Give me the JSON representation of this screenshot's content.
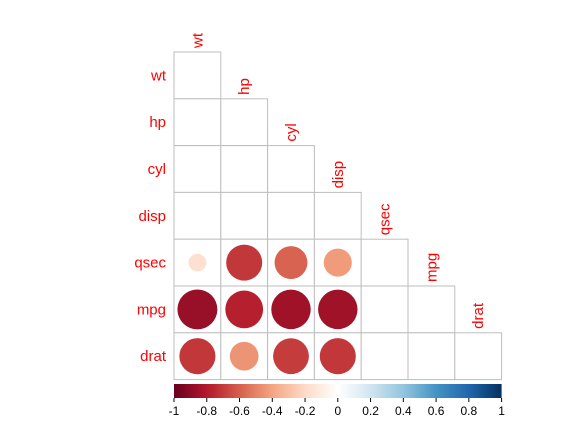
{
  "chart_data": {
    "type": "heatmap",
    "subtype": "correlation-circle-lower",
    "variables": [
      "wt",
      "hp",
      "cyl",
      "disp",
      "qsec",
      "mpg",
      "drat"
    ],
    "cells": [
      {
        "row": "qsec",
        "col": "wt",
        "value": -0.17
      },
      {
        "row": "qsec",
        "col": "hp",
        "value": -0.71
      },
      {
        "row": "qsec",
        "col": "cyl",
        "value": -0.59
      },
      {
        "row": "qsec",
        "col": "disp",
        "value": -0.43
      },
      {
        "row": "mpg",
        "col": "wt",
        "value": -0.87
      },
      {
        "row": "mpg",
        "col": "hp",
        "value": -0.78
      },
      {
        "row": "mpg",
        "col": "cyl",
        "value": -0.85
      },
      {
        "row": "mpg",
        "col": "disp",
        "value": -0.85
      },
      {
        "row": "drat",
        "col": "wt",
        "value": -0.71
      },
      {
        "row": "drat",
        "col": "hp",
        "value": -0.45
      },
      {
        "row": "drat",
        "col": "cyl",
        "value": -0.7
      },
      {
        "row": "drat",
        "col": "disp",
        "value": -0.71
      }
    ],
    "colorbar": {
      "min": -1,
      "max": 1,
      "tick_labels": [
        "-1",
        "-0.8",
        "-0.6",
        "-0.4",
        "-0.2",
        "0",
        "0.2",
        "0.4",
        "0.6",
        "0.8",
        "1"
      ],
      "colors": [
        "#67001F",
        "#B2182B",
        "#D6604D",
        "#F4A582",
        "#FDDBC7",
        "#FFFFFF",
        "#D1E5F0",
        "#92C5DE",
        "#4393C3",
        "#2166AC",
        "#053061"
      ]
    },
    "label_color": "#FF0000",
    "grid_color": "#BEBEBE"
  }
}
